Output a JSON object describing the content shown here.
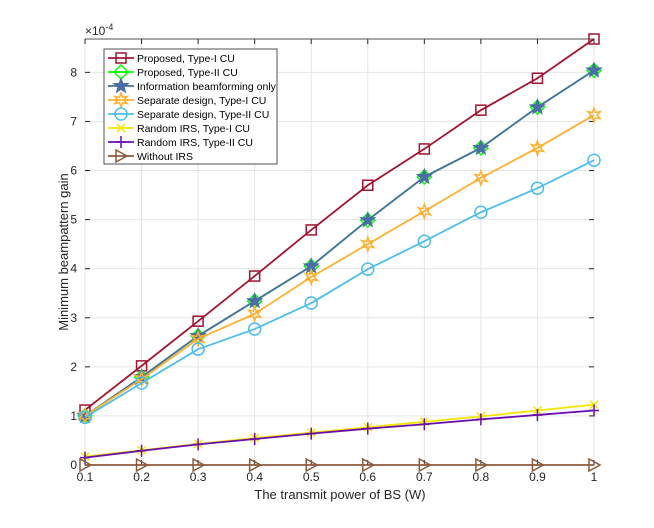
{
  "chart_data": {
    "type": "line",
    "xlabel": "The transmit power of BS (W)",
    "ylabel": "Minimum beampattern gain",
    "y_exponent_label": "×10",
    "y_exponent_power": "-4",
    "xlim": [
      0.1,
      1
    ],
    "ylim": [
      0,
      8.68
    ],
    "grid": true,
    "legend_position": "top-left",
    "x": [
      0.1,
      0.2,
      0.3,
      0.4,
      0.5,
      0.6,
      0.7,
      0.8,
      0.9,
      1
    ],
    "x_ticks": [
      "0.1",
      "0.2",
      "0.3",
      "0.4",
      "0.5",
      "0.6",
      "0.7",
      "0.8",
      "0.9",
      "1"
    ],
    "y_ticks": [
      "0",
      "1",
      "2",
      "3",
      "4",
      "5",
      "6",
      "7",
      "8"
    ],
    "series": [
      {
        "name": "Proposed, Type-I CU",
        "color": "#a2142f",
        "marker": "square",
        "values": [
          1.12,
          2.02,
          2.93,
          3.85,
          4.79,
          5.7,
          6.44,
          7.23,
          7.88,
          8.68
        ]
      },
      {
        "name": "Proposed, Type-II CU",
        "color": "#00ff00",
        "marker": "diamond",
        "values": [
          1.0,
          1.79,
          2.63,
          3.34,
          4.05,
          4.99,
          5.87,
          6.46,
          7.29,
          8.04
        ]
      },
      {
        "name": "Information beamforming only",
        "color": "#4a6fa5",
        "marker": "pentagram",
        "values": [
          1.0,
          1.79,
          2.63,
          3.34,
          4.05,
          4.99,
          5.87,
          6.46,
          7.29,
          8.04
        ]
      },
      {
        "name": "Separate design, Type-I CU",
        "color": "#ffb030",
        "marker": "hexagram",
        "values": [
          1.0,
          1.75,
          2.57,
          3.08,
          3.83,
          4.5,
          5.17,
          5.85,
          6.46,
          7.13
        ]
      },
      {
        "name": "Separate design, Type-II CU",
        "color": "#4dbeee",
        "marker": "circle",
        "values": [
          0.97,
          1.67,
          2.36,
          2.77,
          3.3,
          3.99,
          4.56,
          5.15,
          5.64,
          6.21
        ]
      },
      {
        "name": "Random IRS, Type-I CU",
        "color": "#f5e600",
        "marker": "x",
        "values": [
          0.17,
          0.3,
          0.43,
          0.55,
          0.66,
          0.77,
          0.88,
          0.99,
          1.11,
          1.23
        ]
      },
      {
        "name": "Random IRS, Type-II CU",
        "color": "#6a0dad",
        "marker": "plus",
        "values": [
          0.15,
          0.29,
          0.42,
          0.53,
          0.64,
          0.74,
          0.83,
          0.93,
          1.02,
          1.11
        ]
      },
      {
        "name": "Without IRS",
        "color": "#8b5a3c",
        "marker": "triangle-right",
        "values": [
          0,
          0,
          0,
          0,
          0,
          0,
          0,
          0,
          0,
          0
        ]
      }
    ]
  }
}
